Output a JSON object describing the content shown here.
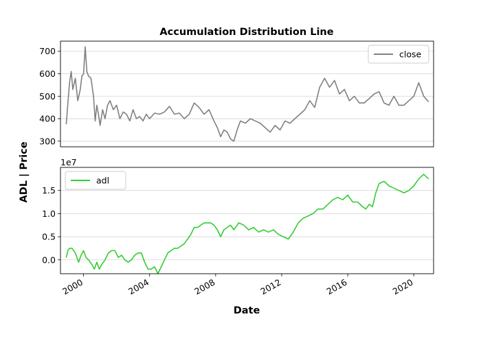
{
  "chart_data": {
    "type": "line",
    "title": "Accumulation Distribution Line",
    "ylabel": "ADL | Price",
    "xlabel": "Date",
    "x_range": [
      1998.6,
      2021.2
    ],
    "x_ticks": [
      2000,
      2004,
      2008,
      2012,
      2016,
      2020
    ],
    "x_tick_labels": [
      "2000",
      "2004",
      "2008",
      "2012",
      "2016",
      "2020"
    ],
    "panels": [
      {
        "name": "price",
        "ylim": [
          275,
          745
        ],
        "y_ticks": [
          300,
          400,
          500,
          600,
          700
        ],
        "y_tick_labels": [
          "300",
          "400",
          "500",
          "600",
          "700"
        ],
        "grid": true,
        "legend": "top-right",
        "series": [
          {
            "name": "close",
            "color": "#808080",
            "x": [
              1998.95,
              1999.05,
              1999.15,
              1999.25,
              1999.35,
              1999.5,
              1999.65,
              1999.8,
              1999.9,
              2000.0,
              2000.1,
              2000.2,
              2000.3,
              2000.45,
              2000.6,
              2000.7,
              2000.8,
              2000.9,
              2001.0,
              2001.15,
              2001.3,
              2001.45,
              2001.6,
              2001.8,
              2002.0,
              2002.2,
              2002.4,
              2002.6,
              2002.8,
              2003.0,
              2003.2,
              2003.4,
              2003.6,
              2003.8,
              2004.0,
              2004.3,
              2004.6,
              2004.9,
              2005.2,
              2005.5,
              2005.8,
              2006.1,
              2006.4,
              2006.7,
              2007.0,
              2007.3,
              2007.6,
              2007.9,
              2008.1,
              2008.3,
              2008.5,
              2008.7,
              2008.9,
              2009.1,
              2009.3,
              2009.5,
              2009.8,
              2010.1,
              2010.4,
              2010.7,
              2011.0,
              2011.3,
              2011.6,
              2011.9,
              2012.2,
              2012.5,
              2012.8,
              2013.1,
              2013.4,
              2013.7,
              2014.0,
              2014.3,
              2014.6,
              2014.9,
              2015.2,
              2015.5,
              2015.8,
              2016.1,
              2016.4,
              2016.7,
              2017.0,
              2017.3,
              2017.6,
              2017.9,
              2018.2,
              2018.5,
              2018.8,
              2019.1,
              2019.4,
              2019.7,
              2020.0,
              2020.3,
              2020.6,
              2020.9
            ],
            "y": [
              375,
              470,
              560,
              610,
              530,
              580,
              480,
              530,
              590,
              600,
              720,
              610,
              590,
              580,
              500,
              390,
              460,
              420,
              370,
              440,
              400,
              460,
              480,
              440,
              460,
              400,
              430,
              420,
              390,
              440,
              400,
              410,
              390,
              420,
              400,
              425,
              420,
              430,
              455,
              420,
              425,
              400,
              420,
              470,
              450,
              420,
              440,
              390,
              360,
              320,
              350,
              340,
              310,
              300,
              350,
              390,
              380,
              400,
              390,
              380,
              360,
              340,
              370,
              350,
              390,
              380,
              400,
              420,
              440,
              480,
              450,
              540,
              580,
              540,
              570,
              510,
              530,
              480,
              500,
              470,
              470,
              490,
              510,
              520,
              470,
              460,
              500,
              460,
              460,
              480,
              500,
              560,
              500,
              475
            ]
          }
        ]
      },
      {
        "name": "adl",
        "ylim": [
          -3000000,
          20000000
        ],
        "y_ticks": [
          0,
          5000000,
          10000000,
          15000000
        ],
        "y_tick_labels": [
          "0.0",
          "0.5",
          "1.0",
          "1.5"
        ],
        "offset_label": "1e7",
        "grid": true,
        "legend": "top-left",
        "series": [
          {
            "name": "adl",
            "color": "#32cd32",
            "x": [
              1998.95,
              1999.05,
              1999.15,
              1999.3,
              1999.5,
              1999.7,
              1999.85,
              2000.0,
              2000.15,
              2000.3,
              2000.5,
              2000.65,
              2000.8,
              2000.95,
              2001.1,
              2001.3,
              2001.5,
              2001.7,
              2001.9,
              2002.1,
              2002.3,
              2002.5,
              2002.7,
              2002.9,
              2003.1,
              2003.3,
              2003.5,
              2003.7,
              2003.9,
              2004.1,
              2004.3,
              2004.5,
              2004.7,
              2004.9,
              2005.1,
              2005.3,
              2005.5,
              2005.7,
              2005.9,
              2006.1,
              2006.3,
              2006.5,
              2006.7,
              2006.9,
              2007.1,
              2007.3,
              2007.5,
              2007.7,
              2007.9,
              2008.1,
              2008.3,
              2008.5,
              2008.7,
              2008.9,
              2009.1,
              2009.4,
              2009.7,
              2010.0,
              2010.3,
              2010.6,
              2010.9,
              2011.2,
              2011.5,
              2011.8,
              2012.1,
              2012.4,
              2012.7,
              2013.0,
              2013.3,
              2013.6,
              2013.9,
              2014.2,
              2014.5,
              2014.8,
              2015.1,
              2015.4,
              2015.7,
              2016.0,
              2016.3,
              2016.6,
              2016.9,
              2017.1,
              2017.3,
              2017.5,
              2017.7,
              2017.9,
              2018.2,
              2018.5,
              2018.8,
              2019.1,
              2019.4,
              2019.7,
              2020.0,
              2020.3,
              2020.6,
              2020.9
            ],
            "y": [
              500000,
              2000000,
              2500000,
              2500000,
              1500000,
              -500000,
              1000000,
              2000000,
              500000,
              0,
              -1000000,
              -2000000,
              -500000,
              -2000000,
              -1000000,
              0,
              1500000,
              2000000,
              2000000,
              500000,
              1000000,
              0,
              -500000,
              0,
              1000000,
              1500000,
              1500000,
              -500000,
              -2000000,
              -2000000,
              -1500000,
              -3000000,
              -1500000,
              0,
              1500000,
              2000000,
              2500000,
              2500000,
              3000000,
              3500000,
              4500000,
              5500000,
              7000000,
              7000000,
              7500000,
              8000000,
              8000000,
              8000000,
              7500000,
              6500000,
              5000000,
              6500000,
              7000000,
              7500000,
              6500000,
              8000000,
              7500000,
              6500000,
              7000000,
              6000000,
              6500000,
              6000000,
              6500000,
              5500000,
              5000000,
              4500000,
              6000000,
              8000000,
              9000000,
              9500000,
              10000000,
              11000000,
              11000000,
              12000000,
              13000000,
              13500000,
              13000000,
              14000000,
              12500000,
              12500000,
              11500000,
              11000000,
              12000000,
              11500000,
              14500000,
              16500000,
              17000000,
              16000000,
              15500000,
              15000000,
              14500000,
              15000000,
              16000000,
              17500000,
              18500000,
              17500000
            ]
          }
        ]
      }
    ]
  }
}
